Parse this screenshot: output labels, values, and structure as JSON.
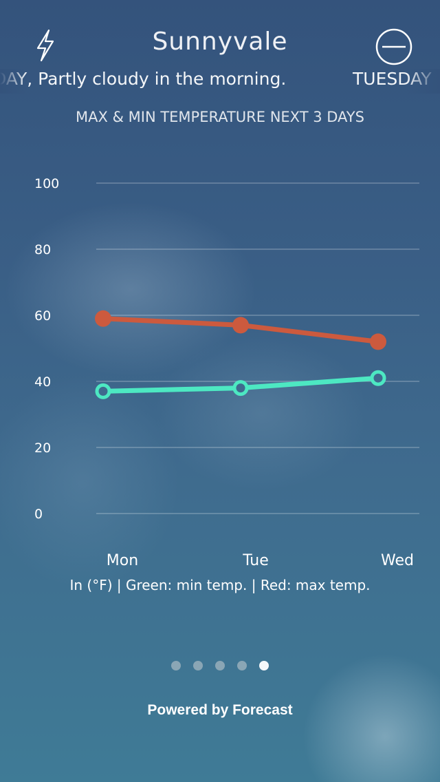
{
  "header": {
    "city": "Sunnyvale",
    "left_icon": "lightning-icon",
    "right_icon": "minus-circle-icon"
  },
  "ticker": {
    "text": "DAY, Partly cloudy in the morning.",
    "next": "TUESDAY"
  },
  "section_title": "MAX & MIN TEMPERATURE NEXT 3 DAYS",
  "legend": "In (°F) | Green: min temp. | Red: max temp.",
  "pager": {
    "count": 5,
    "active_index": 4
  },
  "footer": {
    "powered_by": "Powered by Forecast"
  },
  "colors": {
    "max_line": "#cc5a3e",
    "min_line": "#4de8c2",
    "grid": "rgba(255,255,255,0.28)"
  },
  "chart_data": {
    "type": "line",
    "title": "MAX & MIN TEMPERATURE NEXT 3 DAYS",
    "categories": [
      "Mon",
      "Tue",
      "Wed"
    ],
    "y_ticks": [
      100,
      80,
      60,
      40,
      20,
      0
    ],
    "ylim": [
      0,
      100
    ],
    "grid": true,
    "series": [
      {
        "name": "max temp.",
        "color": "#cc5a3e",
        "values": [
          59,
          57,
          52
        ],
        "marker": "filled"
      },
      {
        "name": "min temp.",
        "color": "#4de8c2",
        "values": [
          37,
          38,
          41
        ],
        "marker": "hollow"
      }
    ]
  }
}
